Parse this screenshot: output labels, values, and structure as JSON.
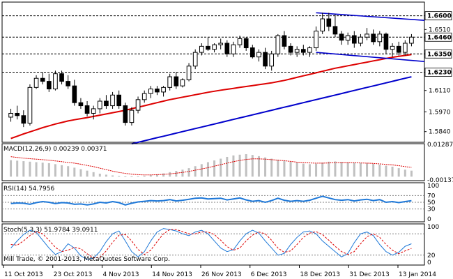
{
  "chart_data": [
    {
      "type": "candlestick",
      "title": "",
      "instrument": "",
      "timeframe": "",
      "x": [
        "11 Oct 2013",
        "23 Oct 2013",
        "4 Nov 2013",
        "14 Nov 2013",
        "26 Nov 2013",
        "6 Dec 2013",
        "18 Dec 2013",
        "31 Dec 2013",
        "13 Jan 2014"
      ],
      "ylim": [
        1.577,
        1.669
      ],
      "y_tick_labels": [
        "1.6510",
        "1.6350",
        "1.6110",
        "1.5970",
        "1.5840"
      ],
      "horizontal_levels": [
        {
          "value": 1.66,
          "label": "1.6600"
        },
        {
          "value": 1.646,
          "label": "1.6460"
        },
        {
          "value": 1.635,
          "label": "1.6350"
        },
        {
          "value": 1.623,
          "label": "1.6230"
        }
      ],
      "candles": [
        {
          "o": 1.5935,
          "h": 1.599,
          "l": 1.5905,
          "c": 1.596
        },
        {
          "o": 1.596,
          "h": 1.601,
          "l": 1.592,
          "c": 1.5945
        },
        {
          "o": 1.5945,
          "h": 1.598,
          "l": 1.587,
          "c": 1.5895
        },
        {
          "o": 1.5895,
          "h": 1.615,
          "l": 1.588,
          "c": 1.613
        },
        {
          "o": 1.613,
          "h": 1.621,
          "l": 1.612,
          "c": 1.619
        },
        {
          "o": 1.619,
          "h": 1.623,
          "l": 1.615,
          "c": 1.617
        },
        {
          "o": 1.617,
          "h": 1.622,
          "l": 1.61,
          "c": 1.612
        },
        {
          "o": 1.612,
          "h": 1.624,
          "l": 1.611,
          "c": 1.622
        },
        {
          "o": 1.622,
          "h": 1.624,
          "l": 1.615,
          "c": 1.617
        },
        {
          "o": 1.617,
          "h": 1.621,
          "l": 1.612,
          "c": 1.614
        },
        {
          "o": 1.614,
          "h": 1.618,
          "l": 1.601,
          "c": 1.603
        },
        {
          "o": 1.603,
          "h": 1.606,
          "l": 1.599,
          "c": 1.601
        },
        {
          "o": 1.601,
          "h": 1.604,
          "l": 1.594,
          "c": 1.596
        },
        {
          "o": 1.596,
          "h": 1.601,
          "l": 1.592,
          "c": 1.599
        },
        {
          "o": 1.599,
          "h": 1.606,
          "l": 1.596,
          "c": 1.604
        },
        {
          "o": 1.604,
          "h": 1.608,
          "l": 1.599,
          "c": 1.601
        },
        {
          "o": 1.601,
          "h": 1.61,
          "l": 1.599,
          "c": 1.608
        },
        {
          "o": 1.608,
          "h": 1.611,
          "l": 1.599,
          "c": 1.601
        },
        {
          "o": 1.601,
          "h": 1.603,
          "l": 1.588,
          "c": 1.59
        },
        {
          "o": 1.59,
          "h": 1.6,
          "l": 1.588,
          "c": 1.598
        },
        {
          "o": 1.598,
          "h": 1.607,
          "l": 1.596,
          "c": 1.605
        },
        {
          "o": 1.605,
          "h": 1.611,
          "l": 1.603,
          "c": 1.609
        },
        {
          "o": 1.609,
          "h": 1.614,
          "l": 1.606,
          "c": 1.612
        },
        {
          "o": 1.612,
          "h": 1.614,
          "l": 1.608,
          "c": 1.61
        },
        {
          "o": 1.61,
          "h": 1.614,
          "l": 1.607,
          "c": 1.613
        },
        {
          "o": 1.613,
          "h": 1.622,
          "l": 1.611,
          "c": 1.62
        },
        {
          "o": 1.62,
          "h": 1.623,
          "l": 1.612,
          "c": 1.614
        },
        {
          "o": 1.614,
          "h": 1.619,
          "l": 1.613,
          "c": 1.618
        },
        {
          "o": 1.618,
          "h": 1.629,
          "l": 1.617,
          "c": 1.627
        },
        {
          "o": 1.627,
          "h": 1.638,
          "l": 1.625,
          "c": 1.636
        },
        {
          "o": 1.636,
          "h": 1.642,
          "l": 1.634,
          "c": 1.64
        },
        {
          "o": 1.64,
          "h": 1.646,
          "l": 1.637,
          "c": 1.638
        },
        {
          "o": 1.638,
          "h": 1.642,
          "l": 1.636,
          "c": 1.641
        },
        {
          "o": 1.641,
          "h": 1.645,
          "l": 1.638,
          "c": 1.642
        },
        {
          "o": 1.642,
          "h": 1.644,
          "l": 1.633,
          "c": 1.635
        },
        {
          "o": 1.635,
          "h": 1.643,
          "l": 1.633,
          "c": 1.641
        },
        {
          "o": 1.641,
          "h": 1.647,
          "l": 1.639,
          "c": 1.645
        },
        {
          "o": 1.645,
          "h": 1.646,
          "l": 1.637,
          "c": 1.639
        },
        {
          "o": 1.639,
          "h": 1.641,
          "l": 1.632,
          "c": 1.633
        },
        {
          "o": 1.633,
          "h": 1.638,
          "l": 1.63,
          "c": 1.636
        },
        {
          "o": 1.636,
          "h": 1.639,
          "l": 1.625,
          "c": 1.627
        },
        {
          "o": 1.627,
          "h": 1.637,
          "l": 1.624,
          "c": 1.635
        },
        {
          "o": 1.635,
          "h": 1.648,
          "l": 1.633,
          "c": 1.647
        },
        {
          "o": 1.647,
          "h": 1.65,
          "l": 1.638,
          "c": 1.64
        },
        {
          "o": 1.64,
          "h": 1.642,
          "l": 1.634,
          "c": 1.636
        },
        {
          "o": 1.636,
          "h": 1.64,
          "l": 1.633,
          "c": 1.638
        },
        {
          "o": 1.638,
          "h": 1.641,
          "l": 1.634,
          "c": 1.636
        },
        {
          "o": 1.636,
          "h": 1.64,
          "l": 1.633,
          "c": 1.639
        },
        {
          "o": 1.639,
          "h": 1.653,
          "l": 1.637,
          "c": 1.65
        },
        {
          "o": 1.65,
          "h": 1.662,
          "l": 1.648,
          "c": 1.658
        },
        {
          "o": 1.658,
          "h": 1.662,
          "l": 1.65,
          "c": 1.653
        },
        {
          "o": 1.653,
          "h": 1.661,
          "l": 1.646,
          "c": 1.648
        },
        {
          "o": 1.648,
          "h": 1.65,
          "l": 1.641,
          "c": 1.644
        },
        {
          "o": 1.644,
          "h": 1.649,
          "l": 1.641,
          "c": 1.647
        },
        {
          "o": 1.647,
          "h": 1.65,
          "l": 1.639,
          "c": 1.642
        },
        {
          "o": 1.642,
          "h": 1.648,
          "l": 1.64,
          "c": 1.646
        },
        {
          "o": 1.646,
          "h": 1.652,
          "l": 1.644,
          "c": 1.648
        },
        {
          "o": 1.648,
          "h": 1.651,
          "l": 1.641,
          "c": 1.643
        },
        {
          "o": 1.643,
          "h": 1.65,
          "l": 1.64,
          "c": 1.648
        },
        {
          "o": 1.648,
          "h": 1.649,
          "l": 1.635,
          "c": 1.638
        },
        {
          "o": 1.638,
          "h": 1.642,
          "l": 1.633,
          "c": 1.64
        },
        {
          "o": 1.64,
          "h": 1.643,
          "l": 1.634,
          "c": 1.636
        },
        {
          "o": 1.636,
          "h": 1.644,
          "l": 1.634,
          "c": 1.642
        },
        {
          "o": 1.642,
          "h": 1.648,
          "l": 1.64,
          "c": 1.646
        }
      ],
      "overlays": [
        {
          "type": "moving_average",
          "color": "#dd0000",
          "values": [
            1.5795,
            1.581,
            1.5825,
            1.5838,
            1.5852,
            1.5866,
            1.5878,
            1.589,
            1.59,
            1.591,
            1.5918,
            1.5925,
            1.5932,
            1.594,
            1.5948,
            1.5956,
            1.5964,
            1.5972,
            1.598,
            1.599,
            1.6,
            1.601,
            1.602,
            1.603,
            1.604,
            1.605,
            1.6058,
            1.6066,
            1.6074,
            1.6082,
            1.609,
            1.6098,
            1.6105,
            1.6112,
            1.6118,
            1.6124,
            1.613,
            1.6136,
            1.6142,
            1.6148,
            1.6154,
            1.616,
            1.6168,
            1.6176,
            1.6186,
            1.6196,
            1.6206,
            1.6216,
            1.6226,
            1.6236,
            1.6246,
            1.6256,
            1.6264,
            1.6272,
            1.628,
            1.6288,
            1.6296,
            1.6304,
            1.6312,
            1.632,
            1.6328,
            1.6334,
            1.634,
            1.6346
          ]
        },
        {
          "type": "moving_average",
          "color": "#0000cc",
          "from_index": 19,
          "values": [
            1.576,
            1.577,
            1.578,
            1.579,
            1.58,
            1.581,
            1.582,
            1.583,
            1.584,
            1.585,
            1.586,
            1.587,
            1.588,
            1.589,
            1.59,
            1.591,
            1.592,
            1.593,
            1.594,
            1.595,
            1.596,
            1.597,
            1.598,
            1.599,
            1.6,
            1.601,
            1.602,
            1.603,
            1.604,
            1.605,
            1.606,
            1.607,
            1.608,
            1.609,
            1.61,
            1.611,
            1.612,
            1.613,
            1.614,
            1.615,
            1.616,
            1.617,
            1.618,
            1.619,
            1.62
          ]
        }
      ],
      "trendlines": [
        {
          "color": "#0000cc",
          "from": {
            "index": 48,
            "value": 1.662
          },
          "to": {
            "index": 63,
            "value": 1.658
          },
          "extended_value": 1.657
        },
        {
          "color": "#0000cc",
          "from": {
            "index": 48,
            "value": 1.636
          },
          "to": {
            "index": 63,
            "value": 1.633
          },
          "extended_value": 1.63
        }
      ]
    },
    {
      "type": "bar",
      "indicator": "MACD(12,26,9)",
      "header": "MACD(12,26,9) 0.00239 0.00371",
      "y_tick_labels": [
        "0.01287",
        "-0.00137"
      ],
      "ylim": [
        -0.0016,
        0.0132
      ],
      "values": [
        0.0066,
        0.0064,
        0.0062,
        0.006,
        0.0058,
        0.0056,
        0.0054,
        0.005,
        0.0046,
        0.0042,
        0.0036,
        0.003,
        0.0024,
        0.0018,
        0.0012,
        0.0008,
        0.0005,
        0.0003,
        0.0001,
        0.0001,
        0.0002,
        0.0004,
        0.0006,
        0.0009,
        0.0013,
        0.0018,
        0.0023,
        0.0028,
        0.0034,
        0.0042,
        0.005,
        0.0058,
        0.0065,
        0.0072,
        0.0079,
        0.0085,
        0.0088,
        0.009,
        0.0087,
        0.0082,
        0.0077,
        0.0072,
        0.0068,
        0.0064,
        0.006,
        0.0056,
        0.0052,
        0.005,
        0.0052,
        0.0056,
        0.006,
        0.0061,
        0.0059,
        0.0057,
        0.0056,
        0.0055,
        0.0053,
        0.0051,
        0.0048,
        0.0044,
        0.004,
        0.0034,
        0.0028,
        0.0024
      ],
      "signal_line": [
        0.008,
        0.0077,
        0.0074,
        0.0072,
        0.007,
        0.0068,
        0.0066,
        0.0063,
        0.006,
        0.0057,
        0.0054,
        0.005,
        0.0045,
        0.004,
        0.0034,
        0.0028,
        0.0022,
        0.0017,
        0.0013,
        0.001,
        0.0008,
        0.0007,
        0.0007,
        0.0008,
        0.0009,
        0.0011,
        0.0014,
        0.0017,
        0.0021,
        0.0026,
        0.0031,
        0.0036,
        0.0042,
        0.0048,
        0.0054,
        0.006,
        0.0065,
        0.0069,
        0.0071,
        0.0071,
        0.007,
        0.0068,
        0.0066,
        0.0064,
        0.0061,
        0.0058,
        0.0056,
        0.0055,
        0.0054,
        0.0054,
        0.0055,
        0.0056,
        0.0056,
        0.0056,
        0.0056,
        0.0055,
        0.0054,
        0.0053,
        0.0051,
        0.0049,
        0.0047,
        0.0044,
        0.004,
        0.0037
      ]
    },
    {
      "type": "line",
      "indicator": "RSI(14)",
      "header": "RSI(14) 54.7956",
      "y_tick_labels": [
        "100",
        "70",
        "50",
        "30",
        "0"
      ],
      "ylim": [
        0,
        100
      ],
      "levels": [
        70,
        50,
        30
      ],
      "values": [
        46,
        48,
        47,
        44,
        49,
        52,
        50,
        46,
        49,
        48,
        44,
        45,
        42,
        45,
        50,
        48,
        52,
        49,
        42,
        47,
        51,
        53,
        55,
        54,
        55,
        58,
        54,
        56,
        59,
        62,
        63,
        60,
        61,
        62,
        57,
        60,
        63,
        57,
        53,
        55,
        50,
        55,
        62,
        56,
        53,
        55,
        53,
        56,
        62,
        68,
        63,
        58,
        56,
        58,
        54,
        57,
        59,
        55,
        58,
        50,
        52,
        49,
        52,
        54.8
      ]
    },
    {
      "type": "line",
      "indicator": "Stoch(5,3,3)",
      "header": "Stoch(5,3,3) 51.9784 39.0911",
      "y_tick_labels": [
        "100",
        "20",
        "0"
      ],
      "ylim": [
        0,
        100
      ],
      "levels": [
        80,
        20
      ],
      "series": [
        {
          "color": "#1e78d8",
          "values": [
            40,
            60,
            78,
            90,
            84,
            62,
            40,
            22,
            30,
            52,
            40,
            18,
            8,
            12,
            30,
            58,
            80,
            88,
            60,
            30,
            15,
            30,
            60,
            85,
            95,
            92,
            88,
            80,
            75,
            85,
            90,
            80,
            60,
            40,
            30,
            35,
            60,
            80,
            90,
            82,
            60,
            40,
            20,
            25,
            50,
            70,
            85,
            88,
            80,
            60,
            45,
            30,
            15,
            25,
            55,
            80,
            85,
            75,
            50,
            30,
            20,
            28,
            45,
            52
          ]
        },
        {
          "color": "#dd0000",
          "values": [
            50,
            48,
            60,
            75,
            86,
            80,
            62,
            42,
            30,
            34,
            42,
            38,
            24,
            12,
            14,
            32,
            56,
            76,
            78,
            60,
            36,
            22,
            34,
            58,
            80,
            92,
            92,
            86,
            80,
            80,
            85,
            85,
            78,
            62,
            44,
            34,
            40,
            60,
            76,
            85,
            80,
            62,
            40,
            28,
            32,
            50,
            70,
            82,
            86,
            78,
            62,
            45,
            30,
            22,
            30,
            52,
            72,
            80,
            70,
            50,
            34,
            24,
            32,
            39
          ]
        }
      ]
    }
  ],
  "watermark": "Mill Trade, © 2001-2013, MetaQuotes Software Corp.",
  "colors": {
    "frame": "#000000",
    "bull": "#ffffff",
    "bear": "#000000",
    "grid": "#000000",
    "ma_fast": "#dd0000",
    "ma_slow": "#0000cc",
    "trend": "#0000cc",
    "rsi": "#1e78d8",
    "macd_hist": "#c0c0c0"
  }
}
